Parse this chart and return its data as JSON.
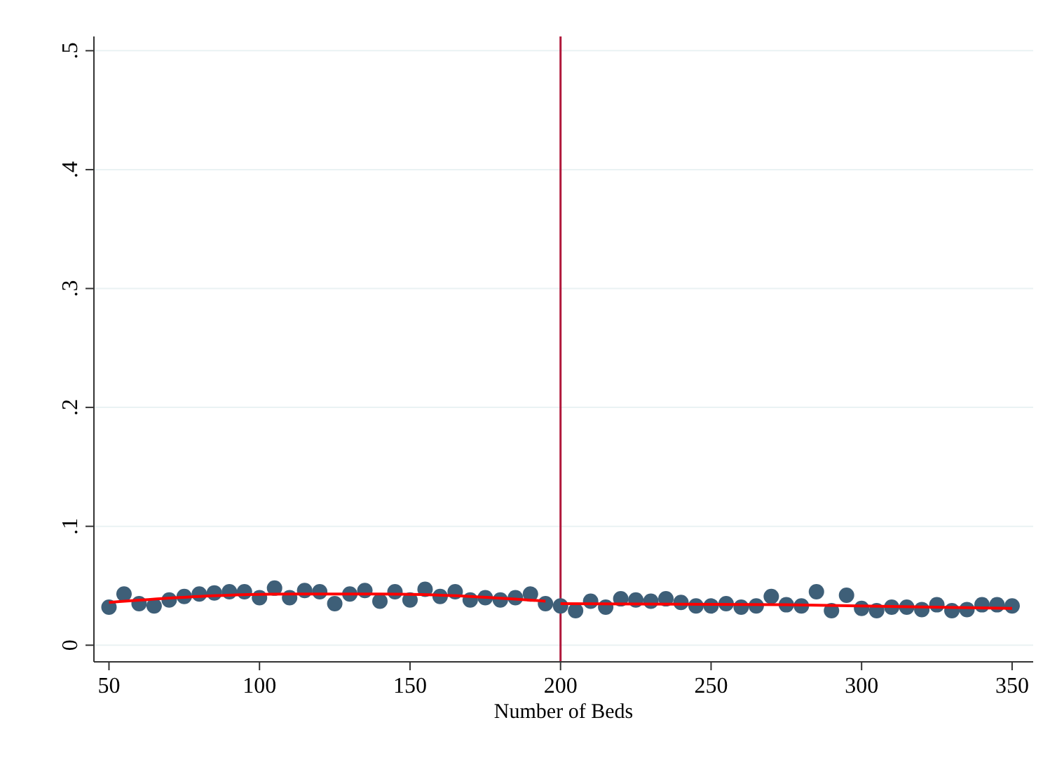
{
  "chart_data": {
    "type": "scatter",
    "xlabel": "Number of Beds",
    "xlim": [
      45,
      357
    ],
    "ylim": [
      -0.014,
      0.512
    ],
    "xticks": [
      50,
      100,
      150,
      200,
      250,
      300,
      350
    ],
    "yticks": [
      {
        "value": 0,
        "label": "0"
      },
      {
        "value": 0.1,
        "label": ".1"
      },
      {
        "value": 0.2,
        "label": ".2"
      },
      {
        "value": 0.3,
        "label": ".3"
      },
      {
        "value": 0.4,
        "label": ".4"
      },
      {
        "value": 0.5,
        "label": ".5"
      }
    ],
    "grid": "y",
    "marker": "circle",
    "series": [
      {
        "color": "#3e5f78",
        "x": [
          50,
          55,
          60,
          65,
          70,
          75,
          80,
          85,
          90,
          95,
          100,
          105,
          110,
          115,
          120,
          125,
          130,
          135,
          140,
          145,
          150,
          155,
          160,
          165,
          170,
          175,
          180,
          185,
          190,
          195,
          200,
          205,
          210,
          215,
          220,
          225,
          230,
          235,
          240,
          245,
          250,
          255,
          260,
          265,
          270,
          275,
          280,
          285,
          290,
          295,
          300,
          305,
          310,
          315,
          320,
          325,
          330,
          335,
          340,
          345,
          350
        ],
        "values": [
          0.032,
          0.043,
          0.035,
          0.033,
          0.038,
          0.041,
          0.043,
          0.044,
          0.045,
          0.045,
          0.04,
          0.048,
          0.04,
          0.046,
          0.045,
          0.035,
          0.043,
          0.046,
          0.037,
          0.045,
          0.038,
          0.047,
          0.041,
          0.045,
          0.038,
          0.04,
          0.038,
          0.04,
          0.043,
          0.035,
          0.033,
          0.029,
          0.037,
          0.032,
          0.039,
          0.038,
          0.037,
          0.039,
          0.036,
          0.033,
          0.033,
          0.035,
          0.032,
          0.033,
          0.041,
          0.034,
          0.033,
          0.045,
          0.029,
          0.042,
          0.031,
          0.029,
          0.032,
          0.032,
          0.03,
          0.034,
          0.029,
          0.03,
          0.034,
          0.034,
          0.033
        ]
      },
      {
        "type": "line",
        "color": "#ff0000",
        "marker": "none",
        "x": [
          50,
          80,
          110,
          140,
          170,
          195
        ],
        "values": [
          0.036,
          0.041,
          0.043,
          0.043,
          0.041,
          0.037
        ]
      },
      {
        "type": "line",
        "color": "#ff0000",
        "marker": "none",
        "x": [
          200,
          275,
          350
        ],
        "values": [
          0.035,
          0.034,
          0.031
        ]
      }
    ],
    "ref_lines": [
      {
        "axis": "x",
        "value": 200,
        "color": "#b0173a"
      }
    ]
  }
}
